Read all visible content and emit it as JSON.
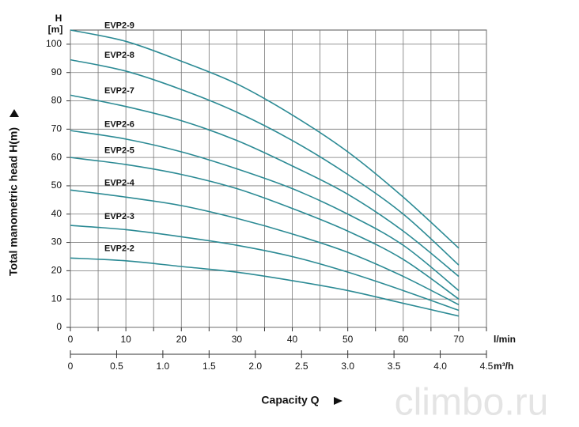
{
  "chart_data": {
    "type": "line",
    "y_unit_top": "H",
    "y_unit": "[m]",
    "ylabel": "Total manometric head H(m)",
    "xlabel": "l/min",
    "x2label": "m³/h",
    "x_title": "Capacity Q",
    "watermark": "climbo.ru",
    "x": [
      0,
      10,
      20,
      30,
      40,
      50,
      60,
      70
    ],
    "xlim": [
      0,
      75
    ],
    "xticks": [
      0,
      10,
      20,
      30,
      40,
      50,
      60,
      70
    ],
    "xminor": [
      5,
      15,
      25,
      35,
      45,
      55,
      65,
      75
    ],
    "x2lim": [
      0,
      4.5
    ],
    "x2ticks": [
      0,
      0.5,
      {
        "value": 1,
        "label": "1.0"
      },
      1.5,
      {
        "value": 2,
        "label": "2.0"
      },
      2.5,
      {
        "value": 3,
        "label": "3.0"
      },
      3.5,
      {
        "value": 4,
        "label": "4.0"
      },
      4.5
    ],
    "ylim": [
      0,
      105
    ],
    "yticks": [
      0,
      10,
      20,
      30,
      40,
      50,
      60,
      70,
      80,
      90,
      100
    ],
    "grid": true,
    "color": "#2b8a94",
    "series": [
      {
        "name": "EVP2-9",
        "values": [
          105,
          101,
          94,
          86,
          75,
          62,
          46,
          28
        ]
      },
      {
        "name": "EVP2-8",
        "values": [
          94.5,
          90.5,
          84,
          76,
          66,
          54,
          40,
          22
        ]
      },
      {
        "name": "EVP2-7",
        "values": [
          82,
          78,
          73,
          66,
          57,
          47,
          34,
          18
        ]
      },
      {
        "name": "EVP2-6",
        "values": [
          69.5,
          66.5,
          62,
          56,
          49,
          40,
          29,
          13
        ]
      },
      {
        "name": "EVP2-5",
        "values": [
          60,
          57.5,
          54,
          49,
          42,
          34,
          24,
          10
        ]
      },
      {
        "name": "EVP2-4",
        "values": [
          48.5,
          46,
          43,
          38.5,
          33,
          26.5,
          18,
          8
        ]
      },
      {
        "name": "EVP2-3",
        "values": [
          36,
          34.5,
          32,
          29,
          25,
          19.5,
          13,
          6
        ]
      },
      {
        "name": "EVP2-2",
        "values": [
          24.5,
          23.5,
          21.5,
          19.5,
          16.5,
          13,
          8.5,
          4
        ]
      }
    ]
  }
}
